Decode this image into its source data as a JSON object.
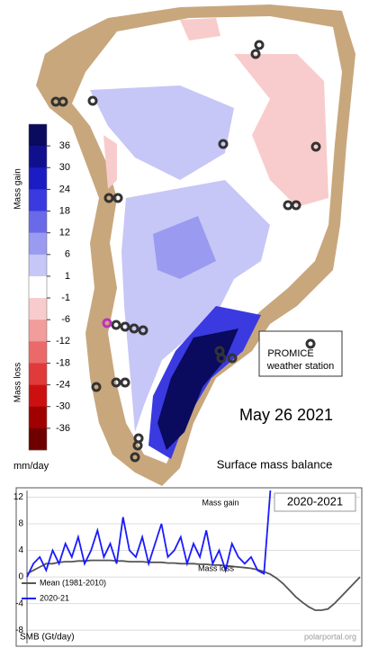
{
  "map": {
    "title": "May 26 2021",
    "subtitle": "Surface mass balance",
    "colorbar": {
      "gain_label": "Mass gain",
      "loss_label": "Mass loss",
      "unit": "mm/day",
      "ticks": [
        36,
        30,
        24,
        18,
        12,
        6,
        1,
        -1,
        -6,
        -12,
        -18,
        -24,
        -30,
        -36
      ],
      "colors": [
        "#0a0a5e",
        "#10108f",
        "#1c1cc4",
        "#3a3ae0",
        "#6a6ae8",
        "#9a9af0",
        "#c6c6f7",
        "#ffffff",
        "#f8cccc",
        "#f29c9c",
        "#ea6a6a",
        "#e03a3a",
        "#cc1010",
        "#a00000",
        "#6e0000"
      ]
    },
    "legend": {
      "line1": "PROMICE",
      "line2": "weather station"
    }
  },
  "chart_data": {
    "type": "line",
    "title": "2020-2021",
    "annotations": [
      "Mass gain",
      "Mass loss"
    ],
    "y_label": "SMB (Gt/day)",
    "credit": "polarportal.org",
    "ylim": [
      -10,
      13
    ],
    "yticks": [
      12,
      8,
      4,
      0,
      -4,
      -8
    ],
    "grid": true,
    "series": [
      {
        "name": "Mean (1981-2010)",
        "color": "#555555",
        "values": [
          0.5,
          1,
          1.5,
          2,
          2,
          2.2,
          2.3,
          2.3,
          2.4,
          2.4,
          2.5,
          2.5,
          2.5,
          2.5,
          2.4,
          2.4,
          2.3,
          2.3,
          2.3,
          2.2,
          2.2,
          2.2,
          2.1,
          2.1,
          2,
          2,
          2,
          1.9,
          1.9,
          1.8,
          1.8,
          1.7,
          1.6,
          1.5,
          1.4,
          1.3,
          1.1,
          0.8,
          0.4,
          -0.2,
          -1,
          -2,
          -3,
          -3.8,
          -4.5,
          -5,
          -5,
          -4.8,
          -4,
          -3,
          -2,
          -1,
          0
        ]
      },
      {
        "name": "2020-21",
        "color": "#1a1aff",
        "values": [
          0,
          2,
          3,
          1,
          4,
          2,
          5,
          3,
          6,
          2,
          4,
          7,
          3,
          5,
          2,
          9,
          4,
          3,
          6,
          2,
          5,
          8,
          3,
          4,
          6,
          2,
          5,
          3,
          7,
          2,
          4,
          1,
          5,
          3,
          2,
          3,
          1,
          0.5,
          13,
          null,
          null,
          null,
          null,
          null,
          null,
          null,
          null,
          null,
          null,
          null,
          null,
          null,
          null
        ]
      }
    ]
  }
}
